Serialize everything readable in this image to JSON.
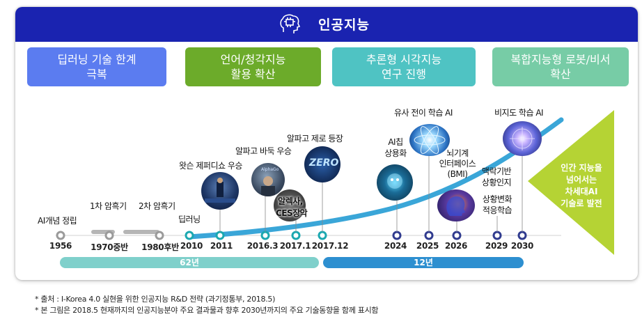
{
  "title": "인공지능",
  "phases": [
    {
      "line1": "딥러닝 기술 한계",
      "line2": "극복",
      "color": "#5b7cf0"
    },
    {
      "line1": "언어/청각지능",
      "line2": "활용 확산",
      "color": "#6cab2a"
    },
    {
      "line1": "추론형 시각지능",
      "line2": "연구 진행",
      "color": "#4fc3c3"
    },
    {
      "line1": "복합지능형 로봇/비서",
      "line2": "확산",
      "color": "#77cca6"
    }
  ],
  "years": [
    "1956",
    "1970중반",
    "1980후반",
    "2010",
    "2011",
    "2016.3",
    "2017.1",
    "2017.12",
    "2024",
    "2025",
    "2026",
    "2029",
    "2030"
  ],
  "events": {
    "ai_concept": "AI개념 정립",
    "winter1": "1차 암흑기",
    "winter2": "2차 암흑기",
    "deep_learning": "딥러닝",
    "watson": "왓슨 제퍼디쇼 우승",
    "alphago": "알파고 바둑 우승",
    "alphago_zero": "알파고 제로 등장",
    "alexa_line1": "알렉사,",
    "alexa_line2": "CES장악",
    "ai_chip_line1": "AI칩",
    "ai_chip_line2": "상용화",
    "transfer": "유사 전이 학습 AI",
    "bmi_line1": "뇌기계",
    "bmi_line2": "인터페이스",
    "bmi_line3": "(BMI)",
    "context_line1": "맥락기반",
    "context_line2": "상황인지",
    "adapt_line1": "상황변화",
    "adapt_line2": "적응학습",
    "unsupervised": "비지도 학습 AI"
  },
  "zero_logo": "ZERO",
  "alphago_logo": "AlphaGo",
  "triangle_text": [
    "인간 지능을",
    "넘어서는",
    "차세대AI",
    "기술로 발전"
  ],
  "spans": [
    {
      "label": "62년",
      "color": "#7fd0cb"
    },
    {
      "label": "12년",
      "color": "#2d8fd0"
    }
  ],
  "notes": [
    "* 출처 : I-Korea 4.0 실현을 위한 인공지능 R&D 전략 (과기정통부, 2018.5)",
    "* 본 그림은 2018.5 현재까지의 인공지능분야 주요 결과물과 향후 2030년까지의 주요 기술동향을 함께 표시함"
  ],
  "colors": {
    "title_bar": "#1a23b0",
    "curve": "#3aa6d8",
    "triangle": "#b5d334",
    "marker_teal": "#1ba8b0",
    "marker_navy": "#303b8f"
  }
}
